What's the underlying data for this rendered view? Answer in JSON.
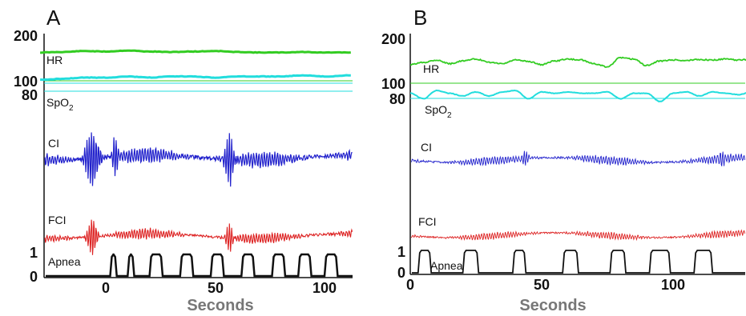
{
  "chart_data": [
    {
      "type": "line",
      "panel_label": "A",
      "xlabel": "Seconds",
      "xlim": [
        -30,
        112
      ],
      "x_ticks": [
        "0",
        "50",
        "100"
      ],
      "x_tick_values": [
        0,
        50,
        100
      ],
      "y_tick_labels": [
        {
          "label": "200",
          "trace": "HR"
        },
        {
          "label": "100",
          "trace": "HR"
        },
        {
          "label": "80",
          "trace": "SpO2"
        },
        {
          "label": "1",
          "trace": "Apnea"
        },
        {
          "label": "0",
          "trace": "Apnea"
        }
      ],
      "traces": [
        {
          "name": "HR",
          "color": "#33cc22",
          "reference_lines": [
            100
          ],
          "x": [
            -30,
            -20,
            -10,
            0,
            10,
            20,
            30,
            40,
            50,
            60,
            70,
            80,
            90,
            100,
            112
          ],
          "values": [
            158,
            159,
            161,
            160,
            162,
            160,
            159,
            160,
            161,
            159,
            158,
            158,
            159,
            158,
            158
          ]
        },
        {
          "name": "SpO2",
          "label_main": "SpO",
          "label_sub": "2",
          "color": "#22dddd",
          "reference_lines": [
            94,
            86
          ],
          "x": [
            -30,
            -20,
            -10,
            0,
            10,
            20,
            30,
            40,
            50,
            60,
            70,
            80,
            90,
            100,
            112
          ],
          "values": [
            93,
            94,
            95,
            95,
            96,
            95,
            96,
            96,
            95,
            96,
            96,
            96,
            97,
            96,
            97
          ]
        },
        {
          "name": "CI",
          "color": "#2222cc",
          "pattern": "oscillation"
        },
        {
          "name": "FCI",
          "color": "#dd2222",
          "pattern": "oscillation"
        },
        {
          "name": "Apnea",
          "color": "#111111",
          "state": "binary",
          "events": [
            [
              2,
              5
            ],
            [
              10,
              13
            ],
            [
              20,
              26
            ],
            [
              34,
              40
            ],
            [
              48,
              54
            ],
            [
              62,
              68
            ],
            [
              76,
              82
            ],
            [
              88,
              94
            ],
            [
              100,
              106
            ]
          ]
        }
      ]
    },
    {
      "type": "line",
      "panel_label": "B",
      "xlabel": "Seconds",
      "xlim": [
        0,
        130
      ],
      "x_ticks": [
        "0",
        "50",
        "100"
      ],
      "x_tick_values": [
        0,
        50,
        100
      ],
      "y_tick_labels": [
        {
          "label": "200",
          "trace": "HR"
        },
        {
          "label": "100",
          "trace": "HR"
        },
        {
          "label": "80",
          "trace": "SpO2"
        },
        {
          "label": "1",
          "trace": "Apnea"
        },
        {
          "label": "0",
          "trace": "Apnea"
        }
      ],
      "traces": [
        {
          "name": "HR",
          "color": "#33cc22",
          "reference_lines": [
            100
          ],
          "x": [
            0,
            5,
            10,
            15,
            20,
            25,
            30,
            35,
            40,
            45,
            50,
            55,
            60,
            65,
            70,
            75,
            80,
            85,
            90,
            95,
            100,
            105,
            110,
            115,
            120,
            125,
            130
          ],
          "values": [
            140,
            145,
            150,
            142,
            148,
            152,
            145,
            142,
            150,
            147,
            140,
            148,
            152,
            150,
            142,
            135,
            155,
            152,
            138,
            148,
            150,
            149,
            151,
            150,
            152,
            150,
            152
          ]
        },
        {
          "name": "SpO2",
          "label_main": "SpO",
          "label_sub": "2",
          "color": "#22dddd",
          "reference_lines": [
            86
          ],
          "x": [
            0,
            5,
            10,
            15,
            20,
            25,
            30,
            35,
            40,
            45,
            50,
            55,
            60,
            65,
            70,
            75,
            80,
            85,
            90,
            95,
            100,
            105,
            110,
            115,
            120,
            125,
            130
          ],
          "values": [
            92,
            88,
            94,
            92,
            90,
            93,
            90,
            93,
            94,
            88,
            93,
            92,
            93,
            92,
            92,
            93,
            88,
            92,
            92,
            86,
            92,
            93,
            90,
            93,
            92,
            91,
            93
          ]
        },
        {
          "name": "CI",
          "color": "#2222cc",
          "pattern": "oscillation"
        },
        {
          "name": "FCI",
          "color": "#dd2222",
          "pattern": "oscillation"
        },
        {
          "name": "Apnea",
          "color": "#111111",
          "state": "binary",
          "events": [
            [
              3,
              8
            ],
            [
              20,
              26
            ],
            [
              39,
              44
            ],
            [
              58,
              64
            ],
            [
              76,
              82
            ],
            [
              91,
              99
            ],
            [
              108,
              115
            ]
          ]
        }
      ]
    }
  ]
}
